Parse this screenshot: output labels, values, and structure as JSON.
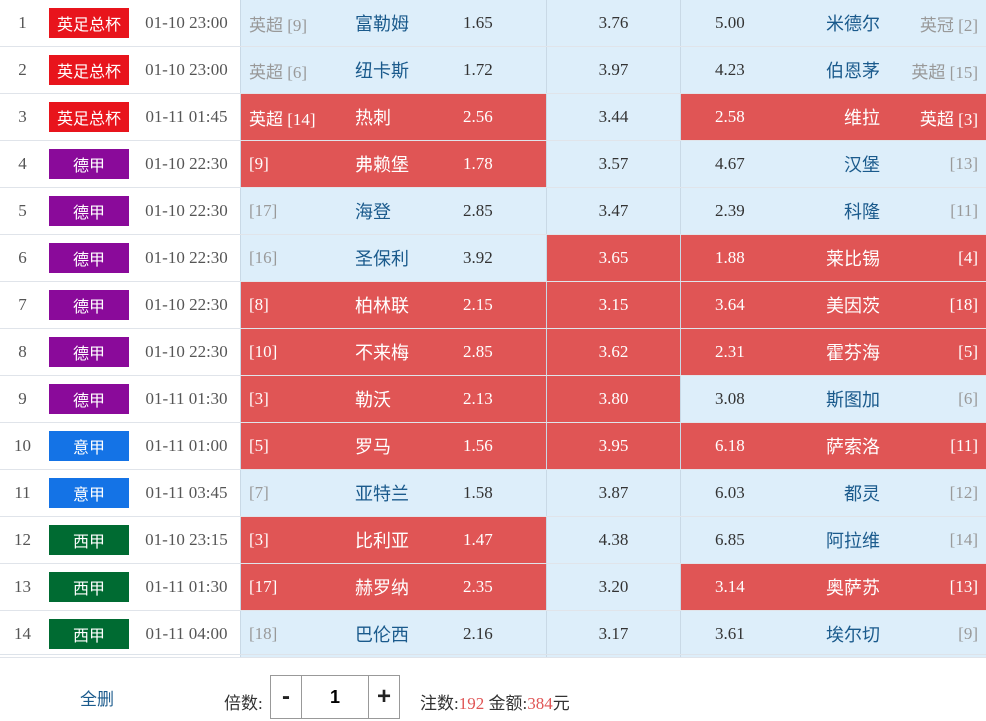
{
  "colors": {
    "selected": "#e05555",
    "cell_bg": "#ddeefa",
    "team_text": "#1a5a8c",
    "league_epl_cup": "#e8141c",
    "league_bundesliga": "#8a0a9a",
    "league_seriea": "#1473e6",
    "league_laliga": "#006b32"
  },
  "matches": [
    {
      "idx": "1",
      "league": "英足总杯",
      "league_color": "#e8141c",
      "time": "01-10 23:00",
      "home_rank": "英超 [9]",
      "home": "富勒姆",
      "home_odds": "1.65",
      "draw_odds": "3.76",
      "away_odds": "5.00",
      "away": "米德尔",
      "away_rank": "英冠 [2]",
      "sel": [
        false,
        false,
        false
      ]
    },
    {
      "idx": "2",
      "league": "英足总杯",
      "league_color": "#e8141c",
      "time": "01-10 23:00",
      "home_rank": "英超 [6]",
      "home": "纽卡斯",
      "home_odds": "1.72",
      "draw_odds": "3.97",
      "away_odds": "4.23",
      "away": "伯恩茅",
      "away_rank": "英超 [15]",
      "sel": [
        false,
        false,
        false
      ]
    },
    {
      "idx": "3",
      "league": "英足总杯",
      "league_color": "#e8141c",
      "time": "01-11 01:45",
      "home_rank": "英超 [14]",
      "home": "热刺",
      "home_odds": "2.56",
      "draw_odds": "3.44",
      "away_odds": "2.58",
      "away": "维拉",
      "away_rank": "英超 [3]",
      "sel": [
        true,
        false,
        true
      ]
    },
    {
      "idx": "4",
      "league": "德甲",
      "league_color": "#8a0a9a",
      "time": "01-10 22:30",
      "home_rank": "[9]",
      "home": "弗赖堡",
      "home_odds": "1.78",
      "draw_odds": "3.57",
      "away_odds": "4.67",
      "away": "汉堡",
      "away_rank": "[13]",
      "sel": [
        true,
        false,
        false
      ]
    },
    {
      "idx": "5",
      "league": "德甲",
      "league_color": "#8a0a9a",
      "time": "01-10 22:30",
      "home_rank": "[17]",
      "home": "海登",
      "home_odds": "2.85",
      "draw_odds": "3.47",
      "away_odds": "2.39",
      "away": "科隆",
      "away_rank": "[11]",
      "sel": [
        false,
        false,
        false
      ]
    },
    {
      "idx": "6",
      "league": "德甲",
      "league_color": "#8a0a9a",
      "time": "01-10 22:30",
      "home_rank": "[16]",
      "home": "圣保利",
      "home_odds": "3.92",
      "draw_odds": "3.65",
      "away_odds": "1.88",
      "away": "莱比锡",
      "away_rank": "[4]",
      "sel": [
        false,
        true,
        true
      ]
    },
    {
      "idx": "7",
      "league": "德甲",
      "league_color": "#8a0a9a",
      "time": "01-10 22:30",
      "home_rank": "[8]",
      "home": "柏林联",
      "home_odds": "2.15",
      "draw_odds": "3.15",
      "away_odds": "3.64",
      "away": "美因茨",
      "away_rank": "[18]",
      "sel": [
        true,
        true,
        true
      ]
    },
    {
      "idx": "8",
      "league": "德甲",
      "league_color": "#8a0a9a",
      "time": "01-10 22:30",
      "home_rank": "[10]",
      "home": "不来梅",
      "home_odds": "2.85",
      "draw_odds": "3.62",
      "away_odds": "2.31",
      "away": "霍芬海",
      "away_rank": "[5]",
      "sel": [
        true,
        true,
        true
      ]
    },
    {
      "idx": "9",
      "league": "德甲",
      "league_color": "#8a0a9a",
      "time": "01-11 01:30",
      "home_rank": "[3]",
      "home": "勒沃",
      "home_odds": "2.13",
      "draw_odds": "3.80",
      "away_odds": "3.08",
      "away": "斯图加",
      "away_rank": "[6]",
      "sel": [
        true,
        true,
        false
      ]
    },
    {
      "idx": "10",
      "league": "意甲",
      "league_color": "#1473e6",
      "time": "01-11 01:00",
      "home_rank": "[5]",
      "home": "罗马",
      "home_odds": "1.56",
      "draw_odds": "3.95",
      "away_odds": "6.18",
      "away": "萨索洛",
      "away_rank": "[11]",
      "sel": [
        true,
        true,
        true
      ]
    },
    {
      "idx": "11",
      "league": "意甲",
      "league_color": "#1473e6",
      "time": "01-11 03:45",
      "home_rank": "[7]",
      "home": "亚特兰",
      "home_odds": "1.58",
      "draw_odds": "3.87",
      "away_odds": "6.03",
      "away": "都灵",
      "away_rank": "[12]",
      "sel": [
        false,
        false,
        false
      ]
    },
    {
      "idx": "12",
      "league": "西甲",
      "league_color": "#006b32",
      "time": "01-10 23:15",
      "home_rank": "[3]",
      "home": "比利亚",
      "home_odds": "1.47",
      "draw_odds": "4.38",
      "away_odds": "6.85",
      "away": "阿拉维",
      "away_rank": "[14]",
      "sel": [
        true,
        false,
        false
      ]
    },
    {
      "idx": "13",
      "league": "西甲",
      "league_color": "#006b32",
      "time": "01-11 01:30",
      "home_rank": "[17]",
      "home": "赫罗纳",
      "home_odds": "2.35",
      "draw_odds": "3.20",
      "away_odds": "3.14",
      "away": "奥萨苏",
      "away_rank": "[13]",
      "sel": [
        true,
        false,
        true
      ]
    },
    {
      "idx": "14",
      "league": "西甲",
      "league_color": "#006b32",
      "time": "01-11 04:00",
      "home_rank": "[18]",
      "home": "巴伦西",
      "home_odds": "2.16",
      "draw_odds": "3.17",
      "away_odds": "3.61",
      "away": "埃尔切",
      "away_rank": "[9]",
      "sel": [
        false,
        false,
        false
      ]
    }
  ],
  "footer": {
    "clear_label": "全删",
    "multiplier_label": "倍数:",
    "minus": "-",
    "plus": "+",
    "multiplier_value": "1",
    "bets_label": "注数:",
    "bets_value": "192",
    "amount_label": "金额:",
    "amount_value": "384",
    "amount_unit": "元"
  }
}
